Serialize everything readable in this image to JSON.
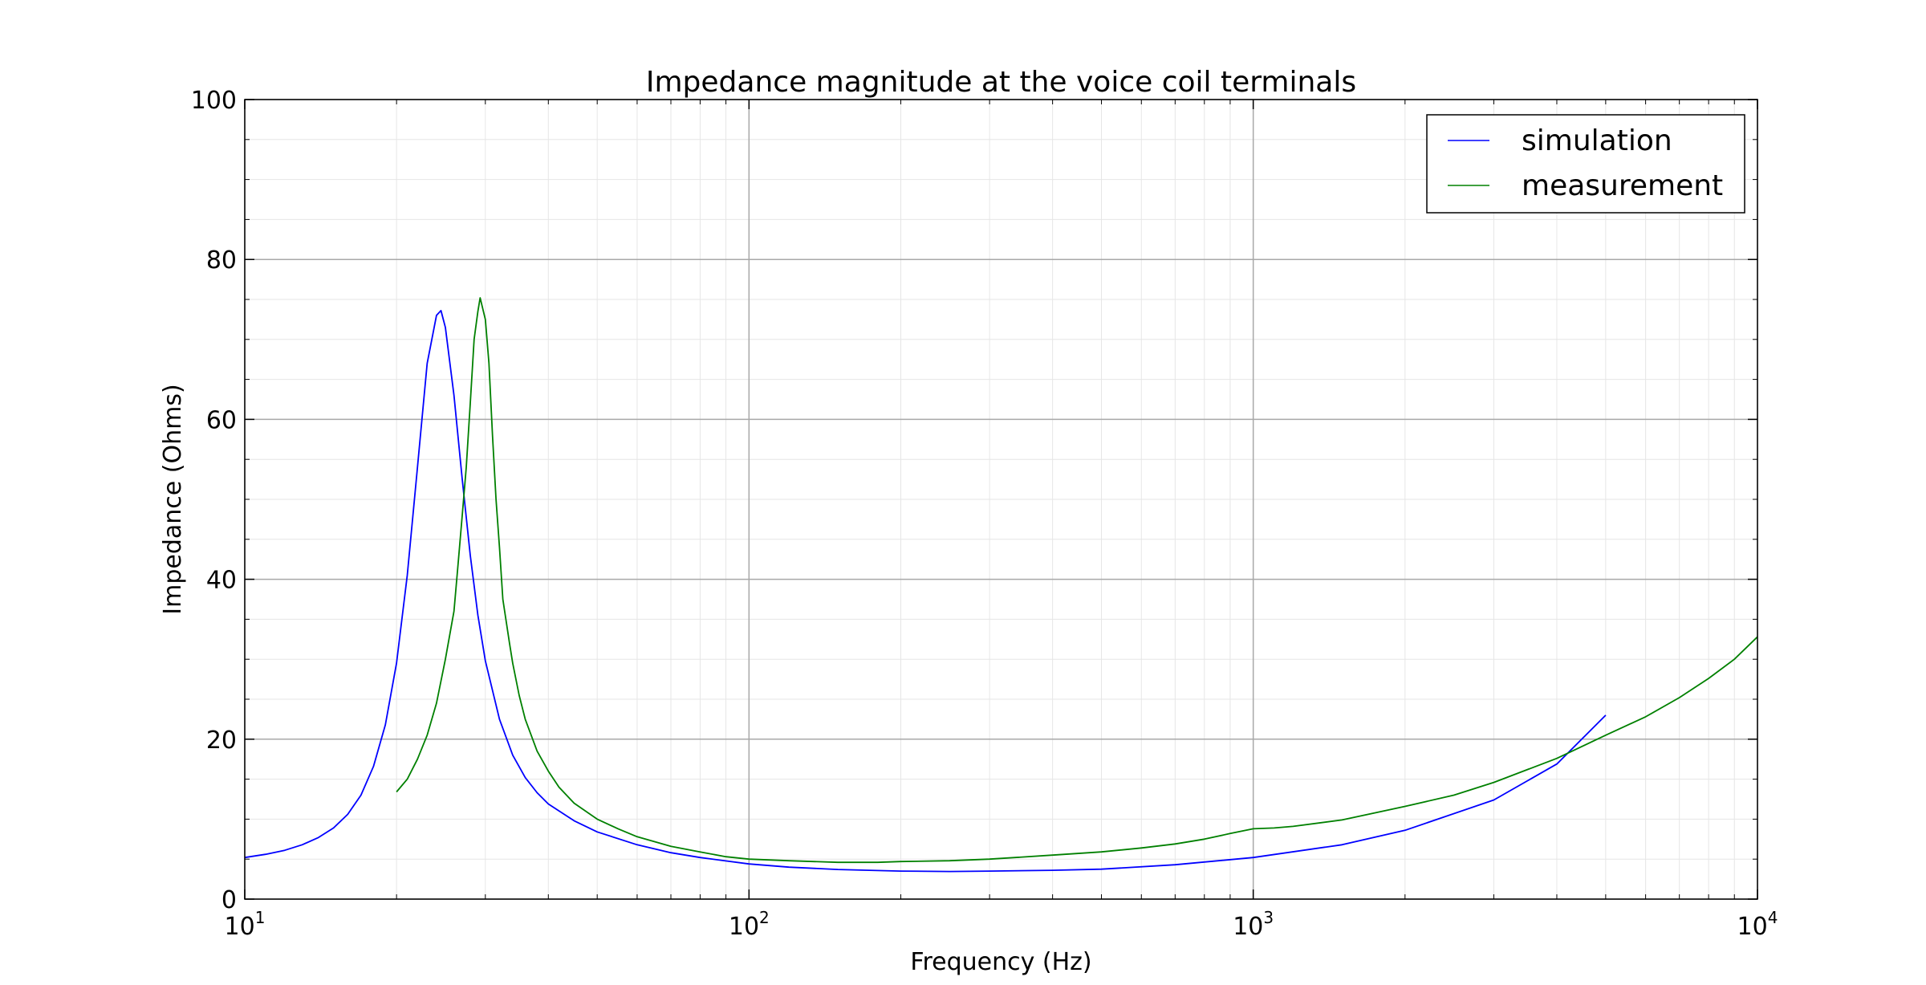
{
  "chart_data": {
    "type": "line",
    "title": "Impedance magnitude at the voice coil terminals",
    "xlabel": "Frequency (Hz)",
    "ylabel": "Impedance (Ohms)",
    "xscale": "log",
    "xlim": [
      10,
      10000
    ],
    "ylim": [
      0,
      100
    ],
    "x_ticks": [
      {
        "base": "10",
        "exp": "1"
      },
      {
        "base": "10",
        "exp": "2"
      },
      {
        "base": "10",
        "exp": "3"
      },
      {
        "base": "10",
        "exp": "4"
      }
    ],
    "y_ticks": [
      "0",
      "20",
      "40",
      "60",
      "80",
      "100"
    ],
    "grid": "major and minor",
    "legend_position": "top-right",
    "series": [
      {
        "name": "simulation",
        "color": "#0000ff",
        "points": [
          [
            10,
            5.2
          ],
          [
            11,
            5.6
          ],
          [
            12,
            6.1
          ],
          [
            13,
            6.8
          ],
          [
            14,
            7.7
          ],
          [
            15,
            8.9
          ],
          [
            16,
            10.6
          ],
          [
            17,
            13.0
          ],
          [
            18,
            16.6
          ],
          [
            19,
            21.8
          ],
          [
            20,
            29.5
          ],
          [
            21,
            40.5
          ],
          [
            22,
            54.0
          ],
          [
            23,
            67.0
          ],
          [
            24,
            73.0
          ],
          [
            24.5,
            73.6
          ],
          [
            25,
            71.5
          ],
          [
            26,
            63.0
          ],
          [
            27,
            52.5
          ],
          [
            28,
            43.0
          ],
          [
            29,
            35.5
          ],
          [
            30,
            29.8
          ],
          [
            32,
            22.5
          ],
          [
            34,
            18.0
          ],
          [
            36,
            15.2
          ],
          [
            38,
            13.3
          ],
          [
            40,
            11.9
          ],
          [
            45,
            9.8
          ],
          [
            50,
            8.4
          ],
          [
            60,
            6.8
          ],
          [
            70,
            5.8
          ],
          [
            80,
            5.2
          ],
          [
            100,
            4.4
          ],
          [
            120,
            4.0
          ],
          [
            150,
            3.7
          ],
          [
            200,
            3.5
          ],
          [
            250,
            3.45
          ],
          [
            300,
            3.5
          ],
          [
            400,
            3.6
          ],
          [
            500,
            3.75
          ],
          [
            700,
            4.3
          ],
          [
            1000,
            5.2
          ],
          [
            1500,
            6.8
          ],
          [
            2000,
            8.6
          ],
          [
            3000,
            12.4
          ],
          [
            4000,
            16.9
          ],
          [
            5000,
            23.0
          ]
        ]
      },
      {
        "name": "measurement",
        "color": "#008000",
        "points": [
          [
            20,
            13.4
          ],
          [
            21,
            15.0
          ],
          [
            22,
            17.5
          ],
          [
            23,
            20.5
          ],
          [
            24,
            24.5
          ],
          [
            25,
            30.0
          ],
          [
            26,
            36.0
          ],
          [
            26.5,
            42.0
          ],
          [
            27,
            48.0
          ],
          [
            27.5,
            54.0
          ],
          [
            28,
            62.0
          ],
          [
            28.5,
            70.0
          ],
          [
            29,
            73.5
          ],
          [
            29.3,
            75.2
          ],
          [
            30,
            72.5
          ],
          [
            30.5,
            67.0
          ],
          [
            31,
            58.0
          ],
          [
            31.5,
            50.0
          ],
          [
            32,
            44.0
          ],
          [
            32.5,
            37.5
          ],
          [
            33.5,
            32.0
          ],
          [
            34,
            29.5
          ],
          [
            35,
            25.5
          ],
          [
            36,
            22.5
          ],
          [
            38,
            18.5
          ],
          [
            40,
            16.0
          ],
          [
            42,
            14.0
          ],
          [
            45,
            12.0
          ],
          [
            50,
            10.0
          ],
          [
            55,
            8.8
          ],
          [
            60,
            7.8
          ],
          [
            70,
            6.6
          ],
          [
            80,
            5.9
          ],
          [
            90,
            5.3
          ],
          [
            100,
            5.0
          ],
          [
            120,
            4.8
          ],
          [
            150,
            4.6
          ],
          [
            180,
            4.6
          ],
          [
            200,
            4.7
          ],
          [
            250,
            4.8
          ],
          [
            300,
            5.0
          ],
          [
            400,
            5.5
          ],
          [
            500,
            5.9
          ],
          [
            600,
            6.4
          ],
          [
            700,
            6.9
          ],
          [
            800,
            7.5
          ],
          [
            900,
            8.2
          ],
          [
            1000,
            8.8
          ],
          [
            1100,
            8.9
          ],
          [
            1200,
            9.1
          ],
          [
            1500,
            9.9
          ],
          [
            2000,
            11.6
          ],
          [
            2500,
            13.0
          ],
          [
            3000,
            14.6
          ],
          [
            4000,
            17.6
          ],
          [
            5000,
            20.5
          ],
          [
            6000,
            22.8
          ],
          [
            7000,
            25.2
          ],
          [
            8000,
            27.6
          ],
          [
            9000,
            30.0
          ],
          [
            10000,
            32.8
          ]
        ]
      }
    ]
  }
}
